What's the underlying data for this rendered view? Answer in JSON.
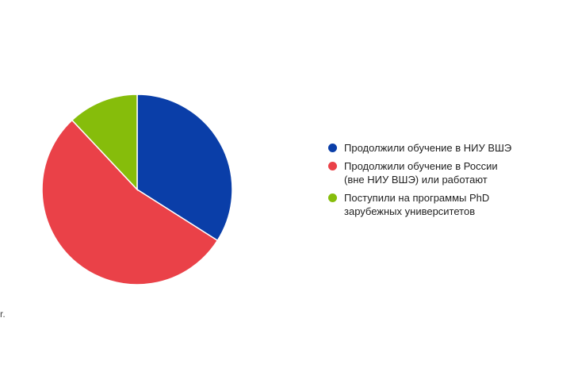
{
  "chart_data": {
    "type": "pie",
    "categories": [
      "Продолжили обучение в НИУ ВШЭ",
      "Продолжили обучение в России (вне НИУ ВШЭ) или работают",
      "Поступили на программы PhD зарубежных университетов"
    ],
    "legend_lines": [
      [
        "Продолжили обучение в НИУ ВШЭ"
      ],
      [
        "Продолжили обучение в России",
        "(вне НИУ ВШЭ) или работают"
      ],
      [
        "Поступили на программы PhD",
        "зарубежных университетов"
      ]
    ],
    "values": [
      34,
      54,
      12
    ],
    "colors": [
      "#0a3ea8",
      "#ea4148",
      "#86bd0b"
    ],
    "start": "12 o'clock",
    "direction": "clockwise",
    "legend_position": "right"
  },
  "corner_note": "r."
}
